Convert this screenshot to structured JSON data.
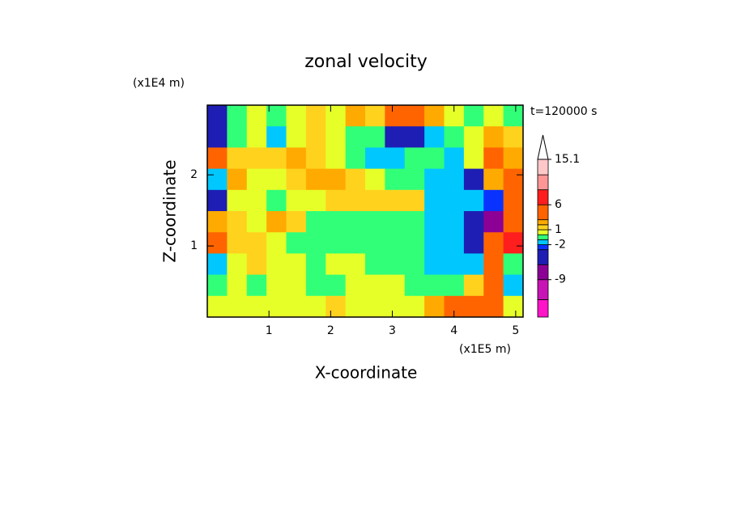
{
  "chart_data": {
    "type": "contour",
    "title": "zonal velocity",
    "subtitle": "t=120000 s",
    "x_label": "X-coordinate",
    "y_label": "Z-coordinate",
    "x_unit": "(x1E5 m)",
    "y_unit": "(x1E4 m)",
    "xlim": [
      0,
      5.12
    ],
    "ylim": [
      0,
      2.98
    ],
    "xticks": [
      1,
      2,
      3,
      4,
      5
    ],
    "yticks": [
      1,
      2
    ],
    "z": [
      [
        -4,
        -1,
        0.5,
        -0.5,
        0.5,
        1.5,
        0.5,
        2,
        1.5,
        3.5,
        4,
        2,
        0,
        -1,
        0.5,
        -1
      ],
      [
        -5,
        -0.5,
        0.5,
        -2,
        0.5,
        1,
        0,
        -1,
        -1,
        -5,
        -4,
        -2,
        -1,
        0.5,
        2,
        1.5
      ],
      [
        4,
        1,
        1.5,
        1,
        2,
        1.5,
        0.5,
        -0.5,
        -1.5,
        -1.5,
        -1,
        -1,
        -2,
        0.5,
        3,
        2
      ],
      [
        -2,
        2,
        0.5,
        0.5,
        1,
        2,
        2.5,
        1.5,
        0.5,
        -1,
        -1,
        -1.5,
        -2,
        -4,
        2,
        4
      ],
      [
        -5,
        0.5,
        0,
        -0.5,
        0,
        0.5,
        1,
        1,
        1.5,
        1.5,
        1,
        -1.5,
        -2,
        -2,
        -3,
        3
      ],
      [
        2,
        1,
        0.5,
        2,
        1,
        -0.5,
        -0.5,
        -0.5,
        -0.5,
        -0.5,
        -1,
        -1.5,
        -2,
        -6,
        -9,
        5
      ],
      [
        3,
        1,
        1,
        0.5,
        -0.5,
        -0.5,
        -0.5,
        -0.5,
        -0.5,
        -0.5,
        -1,
        -2,
        -1.5,
        -4,
        4,
        6
      ],
      [
        -2,
        0.5,
        1,
        0.5,
        0,
        -0.5,
        0.5,
        0.5,
        -0.5,
        -0.5,
        -1,
        -1.5,
        -2,
        -1.5,
        3,
        -1
      ],
      [
        -0.5,
        0.5,
        -0.5,
        0.5,
        0.5,
        -0.5,
        -0.5,
        0.5,
        0.5,
        0.5,
        -0.5,
        -1,
        -1,
        1,
        4,
        -2
      ],
      [
        0.5,
        0.5,
        0.5,
        0.5,
        0.5,
        0.5,
        1.5,
        0.5,
        0.5,
        0.5,
        0.5,
        2,
        3,
        4,
        5,
        0
      ]
    ],
    "levels": [
      -16.5,
      -13,
      -9,
      -6,
      -3,
      -2,
      -1,
      0,
      1,
      2,
      3,
      6,
      9,
      12,
      15.1
    ],
    "colors": [
      "#ff14c8",
      "#c814b4",
      "#8c0096",
      "#1e1eb4",
      "#0a32ff",
      "#00c8ff",
      "#32ff78",
      "#e6ff28",
      "#ffd21e",
      "#ffaa00",
      "#ff6400",
      "#ff1e1e",
      "#ff9696",
      "#ffc8c8"
    ],
    "clim": [
      -16.5,
      15.1
    ],
    "cticks": [
      15.1,
      6,
      1,
      -2,
      -9
    ]
  }
}
